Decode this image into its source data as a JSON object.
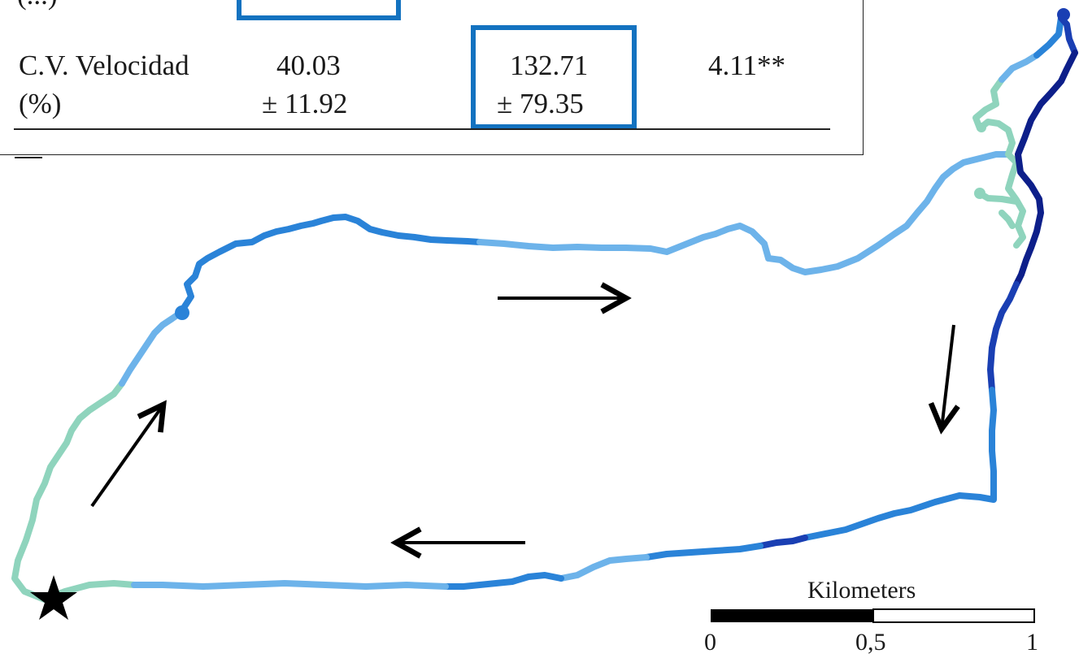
{
  "table": {
    "partial_label": "(...)",
    "row": {
      "label_line1": "C.V. Velocidad",
      "label_line2": "(%)",
      "col1_line1": "40.03",
      "col1_line2": "± 11.92",
      "col2_line1": "132.71",
      "col2_line2": "± 79.35",
      "col3": "4.11**"
    }
  },
  "scale_bar": {
    "title": "Kilometers",
    "ticks": [
      "0",
      "0,5",
      "1"
    ]
  },
  "colors": {
    "lightest": "#8fd4bd",
    "light": "#6db3ea",
    "medium": "#2a83d8",
    "dark": "#1a3fb3",
    "darkest": "#0d1f8a",
    "highlight_box": "#1372c0"
  }
}
